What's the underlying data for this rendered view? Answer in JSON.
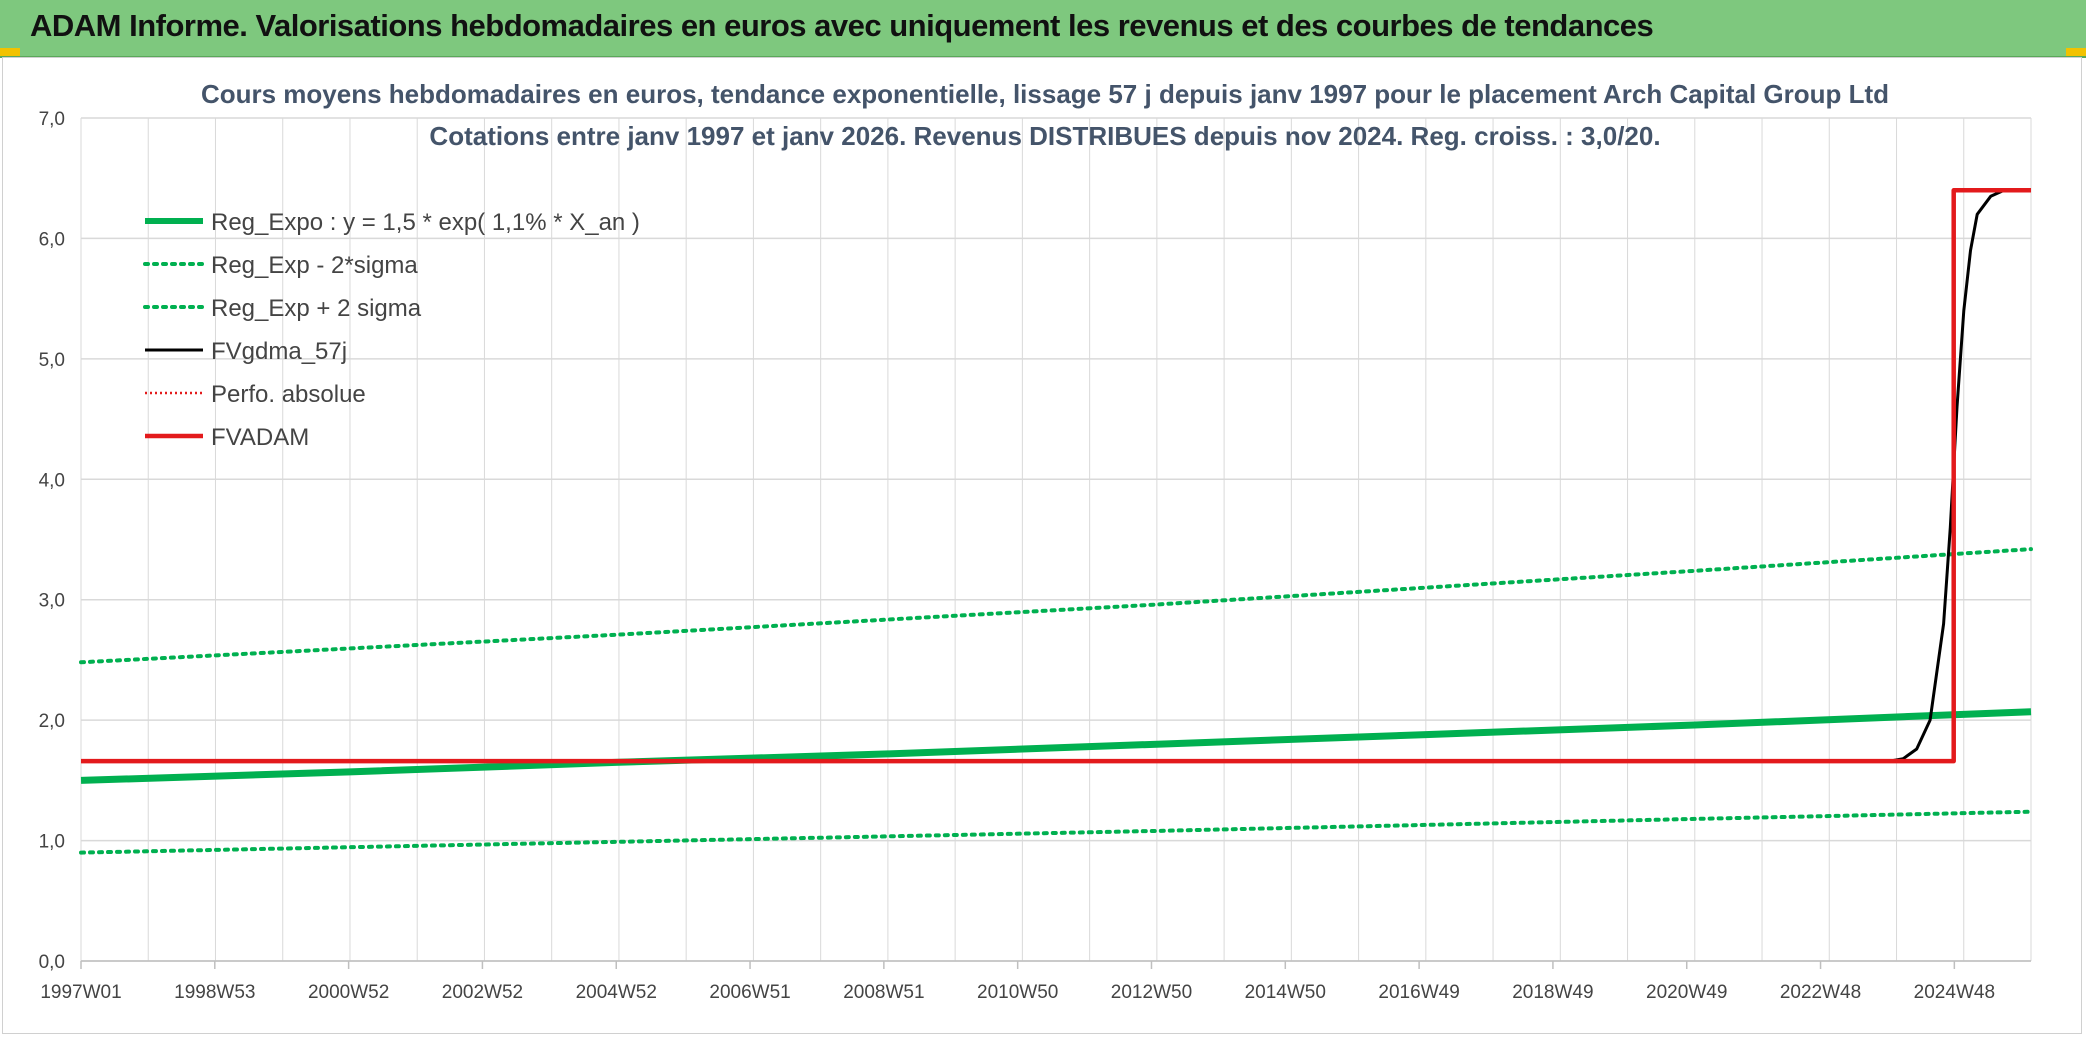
{
  "header": {
    "title": "ADAM Informe. Valorisations hebdomadaires en euros avec uniquement les revenus et des courbes de tendances"
  },
  "colors": {
    "header_bg": "#7ec87e",
    "green": "#00b050",
    "red": "#e31a1c",
    "black": "#000000",
    "grid": "#d9d9d9",
    "title": "#44546a"
  },
  "chart_data": {
    "type": "line",
    "title_line1": "Cours moyens hebdomadaires en euros, tendance exponentielle, lissage 57 j depuis janv 1997 pour le placement Arch Capital Group Ltd",
    "title_line2": "Cotations entre janv 1997 et janv 2026. Revenus DISTRIBUES depuis nov 2024. Reg. croiss. : 3,0/20.",
    "x_range": [
      1997.0,
      2026.0
    ],
    "ylim": [
      0,
      7
    ],
    "y_ticks": [
      0,
      1,
      2,
      3,
      4,
      5,
      6,
      7
    ],
    "y_tick_labels": [
      "0,0",
      "1,0",
      "2,0",
      "3,0",
      "4,0",
      "5,0",
      "6,0",
      "7,0"
    ],
    "x_ticks": [
      1997.0,
      1998.99,
      2000.98,
      2002.97,
      2004.96,
      2006.95,
      2008.94,
      2010.93,
      2012.92,
      2014.91,
      2016.9,
      2018.89,
      2020.88,
      2022.87,
      2024.86
    ],
    "x_tick_labels": [
      "1997W01",
      "1998W53",
      "2000W52",
      "2002W52",
      "2004W52",
      "2006W51",
      "2008W51",
      "2010W50",
      "2012W50",
      "2014W50",
      "2016W49",
      "2018W49",
      "2020W49",
      "2022W48",
      "2024W48"
    ],
    "series": [
      {
        "name": "Reg_Expo : y = 1,5 * exp( 1,1% *  X_an )",
        "style": "thick-green",
        "x": [
          1997.0,
          2001.0,
          2005.0,
          2009.0,
          2013.0,
          2017.0,
          2021.0,
          2026.0
        ],
        "values": [
          1.5,
          1.57,
          1.65,
          1.72,
          1.8,
          1.88,
          1.96,
          2.07
        ]
      },
      {
        "name": "Reg_Exp - 2*sigma",
        "style": "dotted-green",
        "x": [
          1997.0,
          2005.0,
          2013.0,
          2021.0,
          2026.0
        ],
        "values": [
          0.9,
          0.99,
          1.08,
          1.18,
          1.24
        ]
      },
      {
        "name": "Reg_Exp + 2 sigma",
        "style": "dotted-green",
        "x": [
          1997.0,
          2005.0,
          2013.0,
          2021.0,
          2026.0
        ],
        "values": [
          2.48,
          2.71,
          2.96,
          3.24,
          3.42
        ]
      },
      {
        "name": "FVgdma_57j",
        "style": "black",
        "x": [
          1997.0,
          2023.9,
          2024.1,
          2024.3,
          2024.5,
          2024.7,
          2024.8,
          2024.9,
          2025.0,
          2025.1,
          2025.2,
          2025.4,
          2025.6,
          2026.0
        ],
        "values": [
          1.66,
          1.66,
          1.68,
          1.76,
          2.0,
          2.8,
          3.6,
          4.6,
          5.4,
          5.9,
          6.2,
          6.35,
          6.4,
          6.4
        ]
      },
      {
        "name": "Perfo. absolue",
        "style": "dotted-red",
        "x": [],
        "values": []
      },
      {
        "name": "FVADAM",
        "style": "thick-red",
        "x": [
          1997.0,
          2024.85,
          2024.85,
          2026.0
        ],
        "values": [
          1.66,
          1.66,
          6.4,
          6.4
        ]
      }
    ]
  }
}
